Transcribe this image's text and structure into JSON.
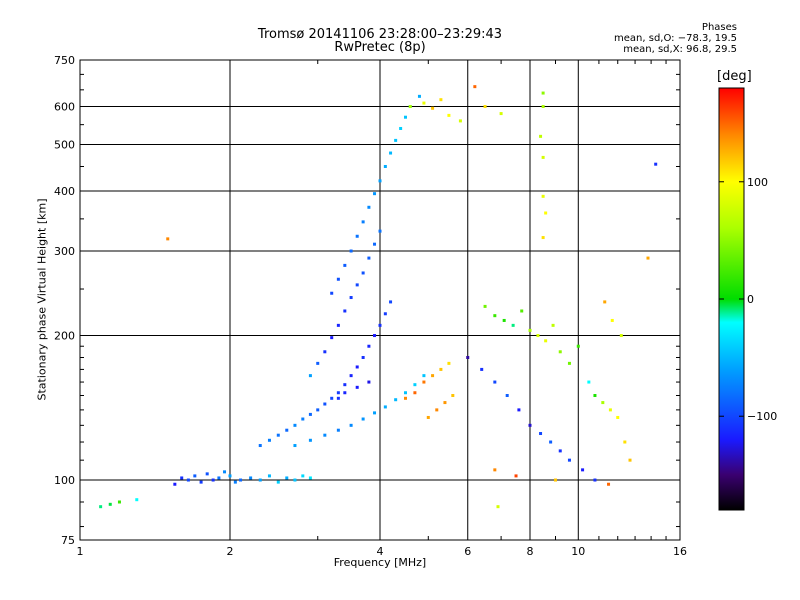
{
  "chart_data": {
    "type": "scatter",
    "title": "Tromsø 20141106 23:28:00–23:29:43",
    "subtitle": "RwPretec (8p)",
    "xlabel": "Frequency [MHz]",
    "ylabel": "Stationary phase Virtual Height [km]",
    "x_scale": "log",
    "y_scale": "log",
    "xlim": [
      1,
      16
    ],
    "ylim": [
      75,
      750
    ],
    "x_ticks": [
      1,
      2,
      4,
      6,
      8,
      10,
      16
    ],
    "x_tick_labels": [
      "1",
      "2",
      "4",
      "6",
      "8",
      "10",
      "16"
    ],
    "y_ticks": [
      75,
      100,
      200,
      300,
      400,
      500,
      600,
      750
    ],
    "y_tick_labels": [
      "75",
      "100",
      "200",
      "300",
      "400",
      "500",
      "600",
      "750"
    ],
    "grid": true,
    "legend": {
      "title": "Phases",
      "entries": [
        "mean, sd,O: −78.3, 19.5",
        "mean, sd,X:  96.8, 29.5"
      ],
      "position": "top-right"
    },
    "colorbar": {
      "label": "[deg]",
      "ticks": [
        100,
        0,
        -100
      ],
      "tick_labels": [
        "100",
        "0",
        "−100"
      ],
      "range": [
        -180,
        180
      ]
    },
    "series": [
      {
        "points": [
          [
            1.1,
            88,
            -10
          ],
          [
            1.15,
            89,
            -5
          ],
          [
            1.2,
            90,
            20
          ],
          [
            1.3,
            91,
            -20
          ],
          [
            1.55,
            98,
            -120
          ],
          [
            1.6,
            101,
            -110
          ],
          [
            1.65,
            100,
            -100
          ],
          [
            1.7,
            102,
            -90
          ],
          [
            1.75,
            99,
            -105
          ],
          [
            1.8,
            103,
            -95
          ],
          [
            1.85,
            100,
            -110
          ],
          [
            1.9,
            101,
            -80
          ],
          [
            1.95,
            104,
            -70
          ],
          [
            2.0,
            102,
            -60
          ],
          [
            2.05,
            99,
            -75
          ],
          [
            2.1,
            100,
            -85
          ],
          [
            2.2,
            101,
            -70
          ],
          [
            2.3,
            100,
            -60
          ],
          [
            2.4,
            102,
            -50
          ],
          [
            2.5,
            99,
            -40
          ],
          [
            2.6,
            101,
            -55
          ],
          [
            2.7,
            100,
            -45
          ],
          [
            2.8,
            102,
            -35
          ],
          [
            2.9,
            101,
            -30
          ],
          [
            2.3,
            118,
            -80
          ],
          [
            2.4,
            121,
            -75
          ],
          [
            2.5,
            124,
            -80
          ],
          [
            2.6,
            127,
            -85
          ],
          [
            2.7,
            130,
            -70
          ],
          [
            2.8,
            134,
            -75
          ],
          [
            2.9,
            137,
            -85
          ],
          [
            3.0,
            140,
            -90
          ],
          [
            3.1,
            144,
            -95
          ],
          [
            3.2,
            148,
            -100
          ],
          [
            3.3,
            152,
            -105
          ],
          [
            3.4,
            158,
            -110
          ],
          [
            3.5,
            165,
            -115
          ],
          [
            3.6,
            172,
            -120
          ],
          [
            3.7,
            180,
            -110
          ],
          [
            3.8,
            190,
            -115
          ],
          [
            3.9,
            200,
            -120
          ],
          [
            4.0,
            210,
            -110
          ],
          [
            4.1,
            222,
            -105
          ],
          [
            4.2,
            235,
            -100
          ],
          [
            2.7,
            118,
            -60
          ],
          [
            2.9,
            121,
            -65
          ],
          [
            3.1,
            124,
            -70
          ],
          [
            3.3,
            127,
            -75
          ],
          [
            3.5,
            130,
            -70
          ],
          [
            3.7,
            134,
            -65
          ],
          [
            3.9,
            138,
            -60
          ],
          [
            4.1,
            142,
            -55
          ],
          [
            4.3,
            147,
            -50
          ],
          [
            4.5,
            152,
            -45
          ],
          [
            4.7,
            158,
            -40
          ],
          [
            4.9,
            165,
            -45
          ],
          [
            2.9,
            165,
            -60
          ],
          [
            3.0,
            175,
            -90
          ],
          [
            3.1,
            185,
            -110
          ],
          [
            3.2,
            198,
            -120
          ],
          [
            3.3,
            210,
            -115
          ],
          [
            3.4,
            225,
            -110
          ],
          [
            3.5,
            240,
            -105
          ],
          [
            3.6,
            255,
            -100
          ],
          [
            3.7,
            270,
            -95
          ],
          [
            3.8,
            290,
            -90
          ],
          [
            3.9,
            310,
            -85
          ],
          [
            4.0,
            330,
            -80
          ],
          [
            3.2,
            245,
            -100
          ],
          [
            3.3,
            262,
            -95
          ],
          [
            3.4,
            280,
            -90
          ],
          [
            3.5,
            300,
            -85
          ],
          [
            3.6,
            322,
            -80
          ],
          [
            3.7,
            345,
            -75
          ],
          [
            3.8,
            370,
            -70
          ],
          [
            3.9,
            395,
            -65
          ],
          [
            4.0,
            420,
            -60
          ],
          [
            4.1,
            450,
            -55
          ],
          [
            4.2,
            480,
            -50
          ],
          [
            4.3,
            510,
            -45
          ],
          [
            4.4,
            540,
            -40
          ],
          [
            4.5,
            570,
            -45
          ],
          [
            4.6,
            600,
            -50
          ],
          [
            4.8,
            630,
            -55
          ],
          [
            3.3,
            148,
            -110
          ],
          [
            3.4,
            152,
            -115
          ],
          [
            3.6,
            156,
            -120
          ],
          [
            3.8,
            160,
            -125
          ],
          [
            4.6,
            600,
            60
          ],
          [
            4.9,
            610,
            90
          ],
          [
            5.1,
            595,
            120
          ],
          [
            5.3,
            620,
            110
          ],
          [
            5.5,
            575,
            100
          ],
          [
            5.8,
            560,
            80
          ],
          [
            4.5,
            148,
            140
          ],
          [
            4.7,
            152,
            150
          ],
          [
            4.9,
            160,
            145
          ],
          [
            5.1,
            165,
            130
          ],
          [
            5.3,
            170,
            120
          ],
          [
            5.5,
            175,
            110
          ],
          [
            5.0,
            135,
            130
          ],
          [
            5.2,
            140,
            140
          ],
          [
            5.4,
            145,
            135
          ],
          [
            5.6,
            150,
            120
          ],
          [
            6.2,
            660,
            150
          ],
          [
            6.5,
            600,
            110
          ],
          [
            7.0,
            580,
            80
          ],
          [
            8.5,
            640,
            50
          ],
          [
            8.5,
            600,
            60
          ],
          [
            8.4,
            520,
            70
          ],
          [
            8.5,
            470,
            80
          ],
          [
            8.5,
            390,
            90
          ],
          [
            8.6,
            360,
            100
          ],
          [
            8.5,
            320,
            110
          ],
          [
            6.5,
            230,
            40
          ],
          [
            6.8,
            220,
            20
          ],
          [
            7.1,
            215,
            10
          ],
          [
            7.4,
            210,
            -10
          ],
          [
            7.7,
            225,
            30
          ],
          [
            8.0,
            205,
            60
          ],
          [
            8.3,
            200,
            80
          ],
          [
            8.6,
            195,
            90
          ],
          [
            8.9,
            210,
            70
          ],
          [
            9.2,
            185,
            50
          ],
          [
            9.6,
            175,
            40
          ],
          [
            10.0,
            190,
            20
          ],
          [
            10.5,
            160,
            -20
          ],
          [
            10.8,
            150,
            10
          ],
          [
            11.2,
            145,
            60
          ],
          [
            11.6,
            140,
            90
          ],
          [
            12.0,
            135,
            100
          ],
          [
            12.4,
            120,
            110
          ],
          [
            12.7,
            110,
            120
          ],
          [
            11.3,
            235,
            130
          ],
          [
            11.7,
            215,
            100
          ],
          [
            12.2,
            200,
            80
          ],
          [
            6.0,
            180,
            -140
          ],
          [
            6.4,
            170,
            -110
          ],
          [
            6.8,
            160,
            -100
          ],
          [
            7.2,
            150,
            -90
          ],
          [
            7.6,
            140,
            -120
          ],
          [
            8.0,
            130,
            -130
          ],
          [
            8.4,
            125,
            -100
          ],
          [
            8.8,
            120,
            -90
          ],
          [
            9.2,
            115,
            -110
          ],
          [
            9.6,
            110,
            -100
          ],
          [
            10.2,
            105,
            -120
          ],
          [
            10.8,
            100,
            -110
          ],
          [
            6.9,
            88,
            80
          ],
          [
            1.5,
            318,
            140
          ],
          [
            14.3,
            455,
            -110
          ],
          [
            13.8,
            290,
            130
          ],
          [
            6.8,
            105,
            140
          ],
          [
            7.5,
            102,
            160
          ],
          [
            9.0,
            100,
            120
          ],
          [
            11.5,
            98,
            150
          ]
        ]
      }
    ]
  }
}
